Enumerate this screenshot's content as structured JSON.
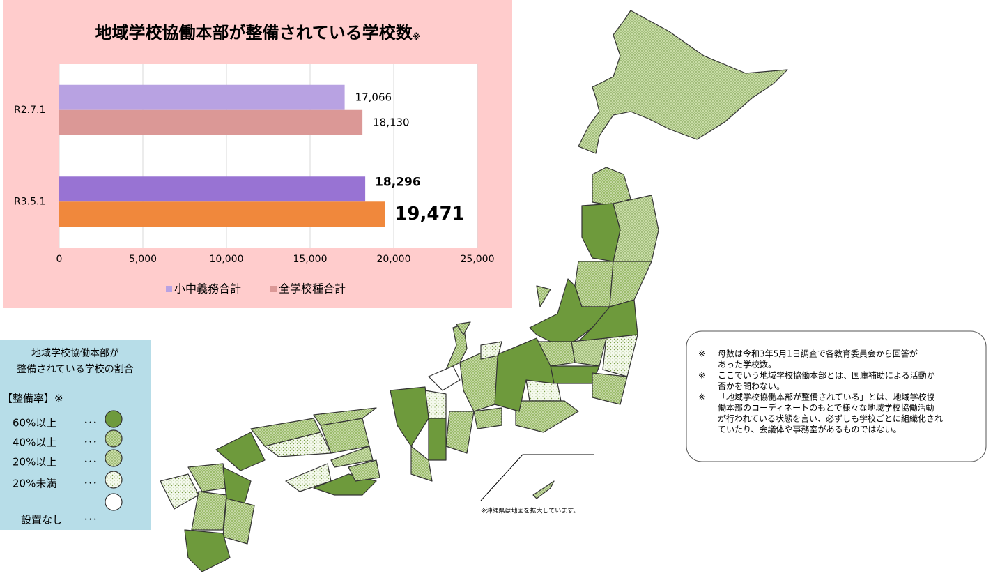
{
  "chart_data": {
    "type": "bar",
    "orientation": "horizontal",
    "title": "地域学校協働本部が整備されている学校数",
    "title_note": "※",
    "categories": [
      "R2.7.1",
      "R3.5.1"
    ],
    "series": [
      {
        "name": "小中義務合計",
        "color": "#b8a2e2",
        "colors": [
          "#b8a2e2",
          "#9873d3"
        ],
        "values": [
          17066,
          18296
        ],
        "value_labels": [
          "17,066",
          "18,296"
        ]
      },
      {
        "name": "全学校種合計",
        "color": "#db9896",
        "colors": [
          "#db9896",
          "#f0883c"
        ],
        "values": [
          18130,
          19471
        ],
        "value_labels": [
          "18,130",
          "19,471"
        ]
      }
    ],
    "xlim": [
      0,
      25000
    ],
    "xticks": [
      0,
      {
        "value": 5000,
        "label": "5,000"
      },
      {
        "value": 10000,
        "label": "10,000"
      },
      {
        "value": 15000,
        "label": "15,000"
      },
      {
        "value": 20000,
        "label": "20,000"
      },
      {
        "value": 25000,
        "label": "25,000"
      }
    ],
    "grid": true,
    "legend": "bottom"
  },
  "legend_box": {
    "title_lines": [
      "地域学校協働本部が",
      "整備されている学校の割合"
    ],
    "rate_label": "【整備率】※",
    "items": [
      {
        "label": "60%以上",
        "dots": "･･･"
      },
      {
        "label": "40%以上",
        "dots": "･･･"
      },
      {
        "label": "20%以上",
        "dots": "･･･"
      },
      {
        "label": "20%未満",
        "dots": "･･･"
      },
      {
        "label": "設置なし",
        "dots": "･･･"
      }
    ]
  },
  "notes": [
    {
      "mark": "※",
      "lines": [
        "母数は令和3年5月1日調査で各教育委員会から回答が",
        "あった学校数。"
      ]
    },
    {
      "mark": "※",
      "lines": [
        "ここでいう地域学校協働本部とは、国庫補助による活動か",
        "否かを問わない。"
      ]
    },
    {
      "mark": "※",
      "lines": [
        "「地域学校協働本部が整備されている」とは、地域学校協",
        "働本部のコーディネートのもとで様々な地域学校協働活動",
        "が行われている状態を言い、必ずしも学校ごとに組織化され",
        "ていたり、会議体や事務室があるものではない。"
      ]
    }
  ],
  "map_note": "※沖縄県は地図を拡大しています。"
}
